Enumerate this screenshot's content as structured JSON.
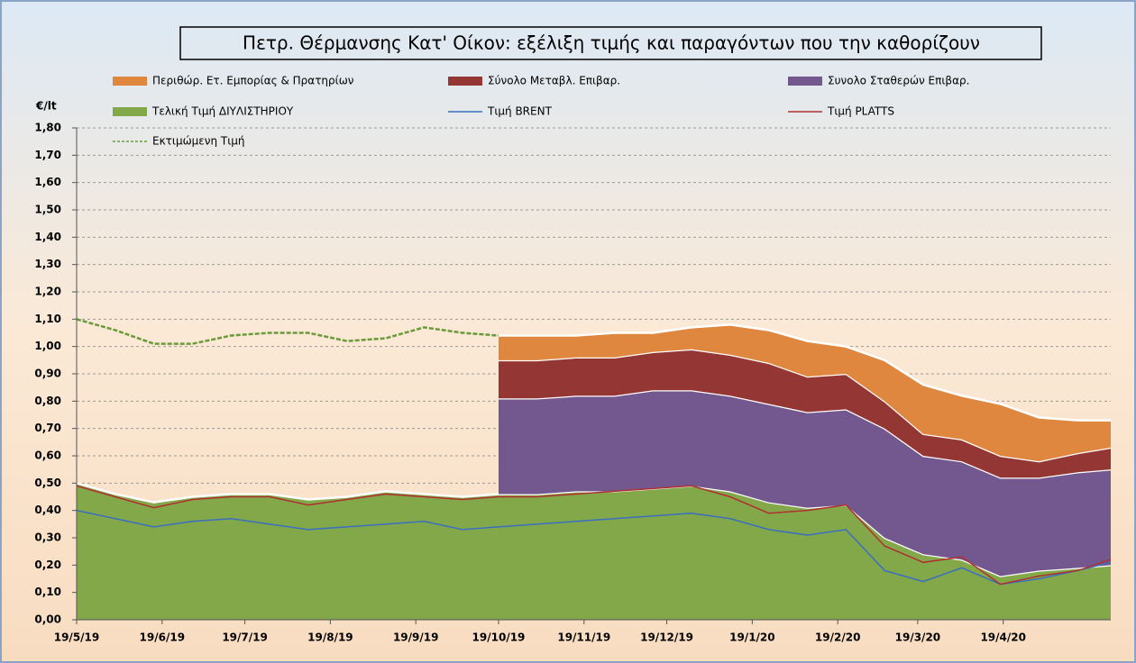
{
  "chart_data": {
    "type": "stacked_area",
    "title": "Πετρ. Θέρμανσης Κατ' Οίκον: εξέλιξη τιμής και παραγόντων που την καθορίζουν",
    "y_label": "€/lt",
    "x": [
      "2019-05-19",
      "2019-06-02",
      "2019-06-16",
      "2019-06-30",
      "2019-07-14",
      "2019-07-28",
      "2019-08-11",
      "2019-08-25",
      "2019-09-08",
      "2019-09-22",
      "2019-10-06",
      "2019-10-19",
      "2019-11-02",
      "2019-11-16",
      "2019-11-30",
      "2019-12-14",
      "2019-12-28",
      "2020-01-11",
      "2020-01-25",
      "2020-02-08",
      "2020-02-22",
      "2020-03-07",
      "2020-03-21",
      "2020-04-04",
      "2020-04-18",
      "2020-05-02",
      "2020-05-16",
      "2020-05-28"
    ],
    "xlim": [
      "2019-05-19",
      "2020-05-28"
    ],
    "xticks": [
      {
        "value": "2019-05-19",
        "label": "19/5/19"
      },
      {
        "value": "2019-06-19",
        "label": "19/6/19"
      },
      {
        "value": "2019-07-19",
        "label": "19/7/19"
      },
      {
        "value": "2019-08-19",
        "label": "19/8/19"
      },
      {
        "value": "2019-09-19",
        "label": "19/9/19"
      },
      {
        "value": "2019-10-19",
        "label": "19/10/19"
      },
      {
        "value": "2019-11-19",
        "label": "19/11/19"
      },
      {
        "value": "2019-12-19",
        "label": "19/12/19"
      },
      {
        "value": "2020-01-19",
        "label": "19/1/20"
      },
      {
        "value": "2020-02-19",
        "label": "19/2/20"
      },
      {
        "value": "2020-03-19",
        "label": "19/3/20"
      },
      {
        "value": "2020-04-19",
        "label": "19/4/20"
      }
    ],
    "ylim": [
      0,
      1.8
    ],
    "yticks": [
      {
        "value": 0,
        "label": "0,00"
      },
      {
        "value": 0.1,
        "label": "0,10"
      },
      {
        "value": 0.2,
        "label": "0,20"
      },
      {
        "value": 0.3,
        "label": "0,30"
      },
      {
        "value": 0.4,
        "label": "0,40"
      },
      {
        "value": 0.5,
        "label": "0,50"
      },
      {
        "value": 0.6,
        "label": "0,60"
      },
      {
        "value": 0.7,
        "label": "0,70"
      },
      {
        "value": 0.8,
        "label": "0,80"
      },
      {
        "value": 0.9,
        "label": "0,90"
      },
      {
        "value": 1.0,
        "label": "1,00"
      },
      {
        "value": 1.1,
        "label": "1,10"
      },
      {
        "value": 1.2,
        "label": "1,20"
      },
      {
        "value": 1.3,
        "label": "1,30"
      },
      {
        "value": 1.4,
        "label": "1,40"
      },
      {
        "value": 1.5,
        "label": "1,50"
      },
      {
        "value": 1.6,
        "label": "1,60"
      },
      {
        "value": 1.7,
        "label": "1,70"
      },
      {
        "value": 1.8,
        "label": "1,80"
      }
    ],
    "grid": true,
    "series": [
      {
        "name": "Περιθώρ. Ετ. Εμπορίας & Πρατηρίων",
        "kind": "area",
        "color": "#e0873f",
        "values": [
          null,
          null,
          null,
          null,
          null,
          null,
          null,
          null,
          null,
          null,
          null,
          0.09,
          0.09,
          0.08,
          0.09,
          0.07,
          0.08,
          0.11,
          0.12,
          0.13,
          0.1,
          0.15,
          0.18,
          0.16,
          0.19,
          0.16,
          0.12,
          0.1
        ]
      },
      {
        "name": "Σύνολο Μεταβλ. Επιβαρ.",
        "kind": "area",
        "color": "#943634",
        "values": [
          null,
          null,
          null,
          null,
          null,
          null,
          null,
          null,
          null,
          null,
          null,
          0.14,
          0.14,
          0.14,
          0.14,
          0.14,
          0.15,
          0.15,
          0.15,
          0.13,
          0.13,
          0.1,
          0.08,
          0.08,
          0.08,
          0.06,
          0.07,
          0.08
        ]
      },
      {
        "name": "Συνολο Σταθερών Επιβαρ.",
        "kind": "area",
        "color": "#72588f",
        "values": [
          null,
          null,
          null,
          null,
          null,
          null,
          null,
          null,
          null,
          null,
          null,
          0.35,
          0.35,
          0.35,
          0.35,
          0.36,
          0.35,
          0.35,
          0.36,
          0.35,
          0.35,
          0.4,
          0.36,
          0.36,
          0.36,
          0.34,
          0.35,
          0.35
        ]
      },
      {
        "name": "Τελική Τιμή ΔΙΥΛΙΣΤΗΡΙΟΥ",
        "kind": "area",
        "color": "#83a84a",
        "values": [
          0.5,
          0.46,
          0.43,
          0.45,
          0.46,
          0.46,
          0.44,
          0.45,
          0.47,
          0.46,
          0.45,
          0.46,
          0.46,
          0.47,
          0.47,
          0.48,
          0.49,
          0.47,
          0.43,
          0.41,
          0.42,
          0.3,
          0.24,
          0.22,
          0.16,
          0.18,
          0.19,
          0.2
        ]
      },
      {
        "name": "Τιμή BRENT",
        "kind": "line",
        "color": "#3a6fbf",
        "values": [
          0.4,
          0.37,
          0.34,
          0.36,
          0.37,
          0.35,
          0.33,
          0.34,
          0.35,
          0.36,
          0.33,
          0.34,
          0.35,
          0.36,
          0.37,
          0.38,
          0.39,
          0.37,
          0.33,
          0.31,
          0.33,
          0.18,
          0.14,
          0.19,
          0.13,
          0.15,
          0.18,
          0.21
        ]
      },
      {
        "name": "Τιμή PLATTS",
        "kind": "line",
        "color": "#b03030",
        "values": [
          0.49,
          0.45,
          0.41,
          0.44,
          0.45,
          0.45,
          0.42,
          0.44,
          0.46,
          0.45,
          0.44,
          0.45,
          0.45,
          0.46,
          0.47,
          0.48,
          0.49,
          0.45,
          0.39,
          0.4,
          0.42,
          0.27,
          0.21,
          0.23,
          0.13,
          0.16,
          0.18,
          0.22
        ]
      },
      {
        "name": "Εκτιμώμενη Τιμή",
        "kind": "line",
        "dashed": true,
        "color": "#6a9a3a",
        "values": [
          1.1,
          1.06,
          1.01,
          1.01,
          1.04,
          1.05,
          1.05,
          1.02,
          1.03,
          1.07,
          1.05,
          1.04,
          null,
          null,
          null,
          null,
          null,
          null,
          null,
          null,
          null,
          null,
          null,
          null,
          null,
          null,
          null,
          null
        ]
      }
    ]
  }
}
